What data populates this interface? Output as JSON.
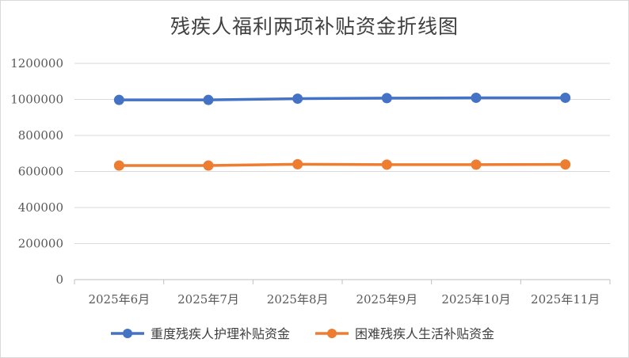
{
  "chart_data": {
    "type": "line",
    "title": "残疾人福利两项补贴资金折线图",
    "categories": [
      "2025年6月",
      "2025年7月",
      "2025年8月",
      "2025年9月",
      "2025年10月",
      "2025年11月"
    ],
    "series": [
      {
        "name": "重度残疾人护理补贴资金",
        "color": "#4472C4",
        "values": [
          997000,
          997000,
          1004000,
          1007000,
          1009000,
          1009000
        ]
      },
      {
        "name": "困难残疾人生活补贴资金",
        "color": "#ED7D31",
        "values": [
          633000,
          633000,
          640000,
          638000,
          638000,
          639000
        ]
      }
    ],
    "ylim": [
      0,
      1200000
    ],
    "yticks": [
      "0",
      "200000",
      "400000",
      "600000",
      "800000",
      "1000000",
      "1200000"
    ],
    "grid": true,
    "legend": "bottom"
  }
}
